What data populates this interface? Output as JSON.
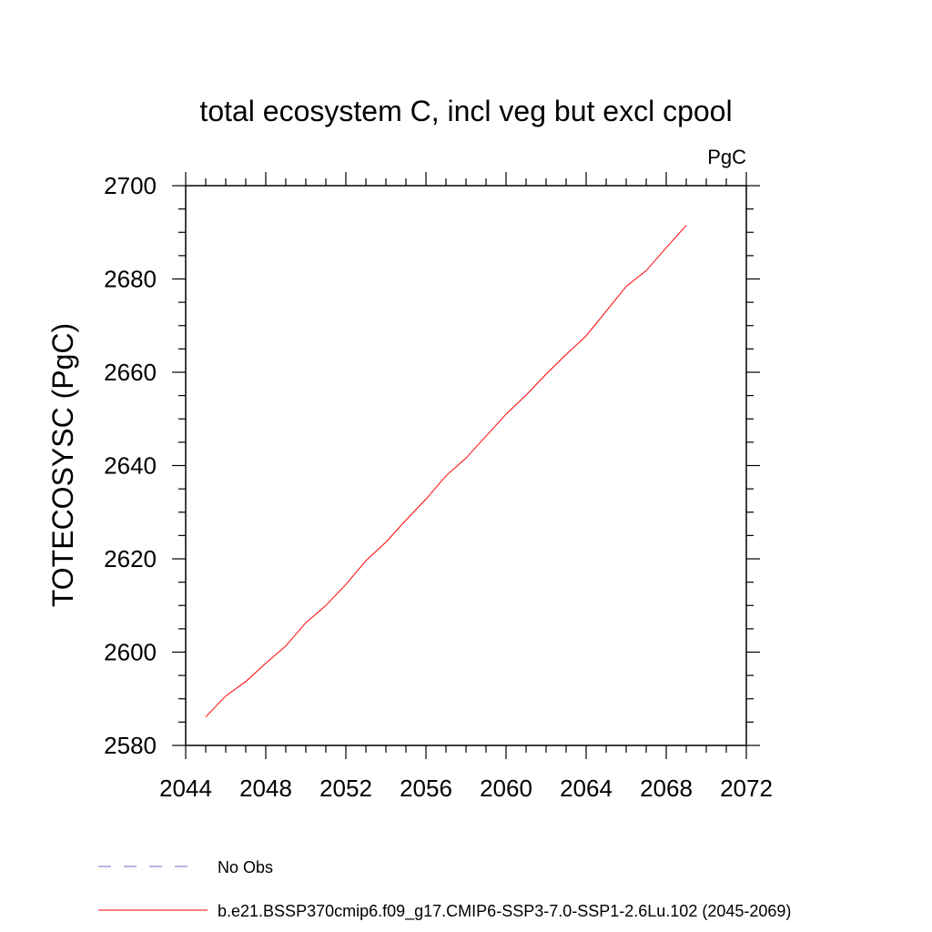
{
  "chart_data": {
    "type": "line",
    "title": "total ecosystem C, incl veg but excl cpool",
    "units_label": "PgC",
    "ylabel": "TOTECOSYSC  (PgC)",
    "xlabel": "",
    "xlim": [
      2044,
      2072
    ],
    "ylim": [
      2580,
      2700
    ],
    "x_ticks": [
      2044,
      2048,
      2052,
      2056,
      2060,
      2064,
      2068,
      2072
    ],
    "y_ticks": [
      2580,
      2600,
      2620,
      2640,
      2660,
      2680,
      2700
    ],
    "grid": false,
    "legend_position": "bottom",
    "series": [
      {
        "name": "b.e21.BSSP370cmip6.f09_g17.CMIP6-SSP3-7.0-SSP1-2.6Lu.102 (2045-2069)",
        "color": "#ff0000",
        "dash": "solid",
        "x": [
          2045,
          2046,
          2047,
          2048,
          2049,
          2050,
          2051,
          2052,
          2053,
          2054,
          2055,
          2056,
          2057,
          2058,
          2059,
          2060,
          2061,
          2062,
          2063,
          2064,
          2065,
          2066,
          2067,
          2068,
          2069
        ],
        "y": [
          2586.1,
          2590.6,
          2593.7,
          2597.6,
          2601.3,
          2606.3,
          2610.0,
          2614.5,
          2619.6,
          2623.6,
          2628.3,
          2632.8,
          2637.8,
          2641.6,
          2646.3,
          2651.0,
          2655.1,
          2659.6,
          2663.8,
          2667.8,
          2673.1,
          2678.4,
          2681.8,
          2686.7,
          2691.5
        ]
      }
    ],
    "legend": [
      {
        "label": "No Obs",
        "color": "#7b68c8",
        "dash": "dashed"
      },
      {
        "label": "b.e21.BSSP370cmip6.f09_g17.CMIP6-SSP3-7.0-SSP1-2.6Lu.102 (2045-2069)",
        "color": "#ff0000",
        "dash": "solid"
      }
    ]
  }
}
